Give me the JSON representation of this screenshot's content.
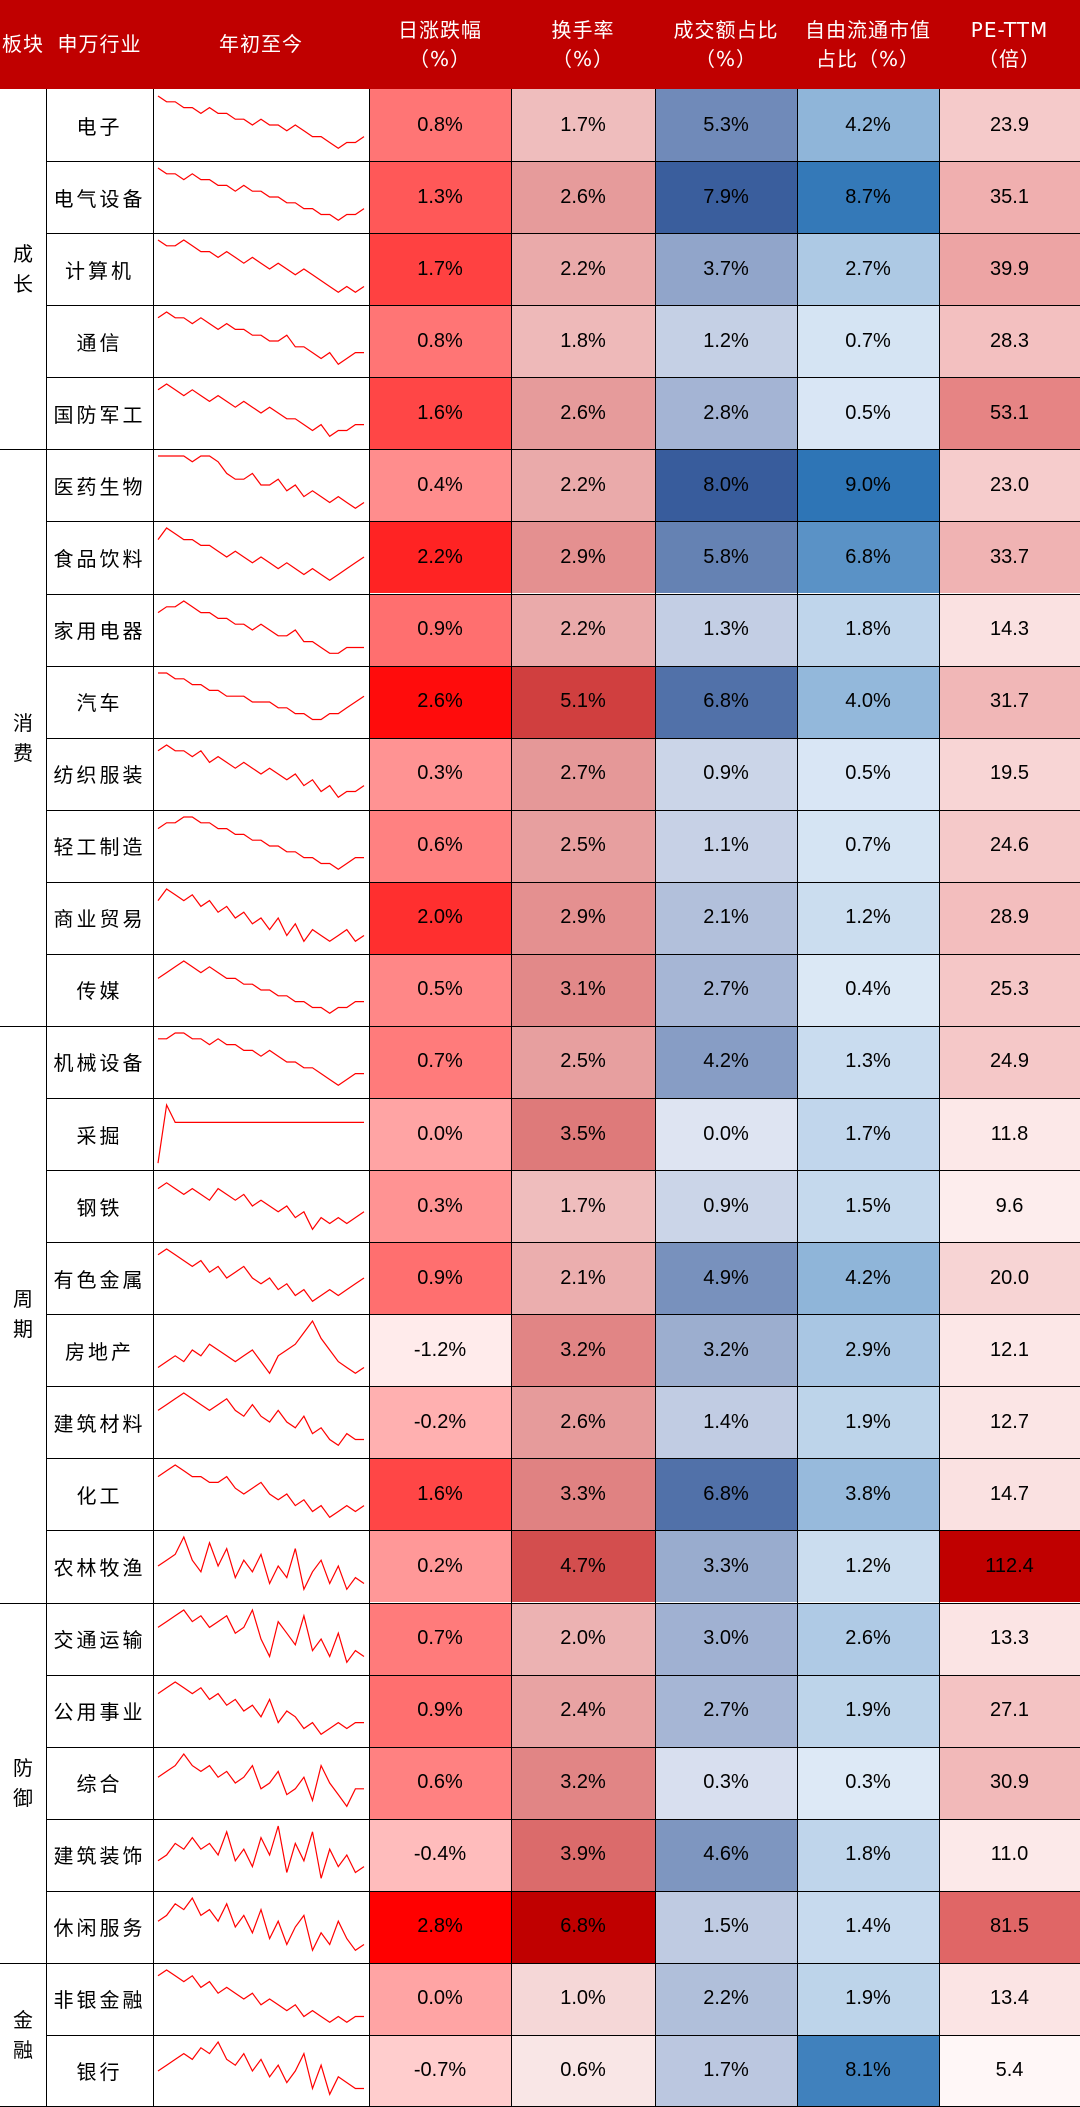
{
  "chart_data": {
    "type": "table",
    "columns": [
      "板块",
      "申万行业",
      "年初至今",
      "日涨跌幅\n（%）",
      "换手率\n（%）",
      "成交额占比\n（%）",
      "自由流通市值\n占比（%）",
      "PE-TTM\n（倍）"
    ],
    "sections": [
      {
        "name": "成长",
        "start": 0,
        "count": 5
      },
      {
        "name": "消费",
        "start": 5,
        "count": 8
      },
      {
        "name": "周期",
        "start": 13,
        "count": 8
      },
      {
        "name": "防御",
        "start": 21,
        "count": 5
      },
      {
        "name": "金融",
        "start": 26,
        "count": 2
      }
    ],
    "rows": [
      {
        "industry": "电子",
        "daily_change": "0.8%",
        "turnover": "1.7%",
        "volume_share": "5.3%",
        "mktcap_share": "4.2%",
        "pe_ttm": "23.9",
        "ytd_trend": [
          10,
          9,
          9,
          8,
          8,
          7,
          8,
          7,
          7,
          6,
          6,
          5,
          6,
          5,
          5,
          4,
          5,
          4,
          3,
          3,
          2,
          1,
          2,
          2,
          3
        ]
      },
      {
        "industry": "电气设备",
        "daily_change": "1.3%",
        "turnover": "2.6%",
        "volume_share": "7.9%",
        "mktcap_share": "8.7%",
        "pe_ttm": "35.1",
        "ytd_trend": [
          10,
          9,
          9,
          8,
          9,
          8,
          8,
          7,
          7,
          6,
          7,
          6,
          6,
          5,
          5,
          4,
          4,
          3,
          3,
          2,
          2,
          1,
          2,
          2,
          3
        ]
      },
      {
        "industry": "计算机",
        "daily_change": "1.7%",
        "turnover": "2.2%",
        "volume_share": "3.7%",
        "mktcap_share": "2.7%",
        "pe_ttm": "39.9",
        "ytd_trend": [
          10,
          9,
          9,
          10,
          9,
          8,
          8,
          7,
          8,
          7,
          6,
          7,
          6,
          5,
          6,
          5,
          4,
          5,
          4,
          3,
          2,
          1,
          2,
          1,
          2
        ]
      },
      {
        "industry": "通信",
        "daily_change": "0.8%",
        "turnover": "1.8%",
        "volume_share": "1.2%",
        "mktcap_share": "0.7%",
        "pe_ttm": "28.3",
        "ytd_trend": [
          9,
          10,
          9,
          9,
          8,
          9,
          8,
          7,
          8,
          7,
          7,
          6,
          6,
          5,
          5,
          6,
          4,
          4,
          3,
          2,
          3,
          1,
          2,
          3,
          3
        ]
      },
      {
        "industry": "国防军工",
        "daily_change": "1.6%",
        "turnover": "2.6%",
        "volume_share": "2.8%",
        "mktcap_share": "0.5%",
        "pe_ttm": "53.1",
        "ytd_trend": [
          9,
          10,
          9,
          8,
          9,
          8,
          7,
          8,
          7,
          6,
          7,
          6,
          5,
          6,
          5,
          4,
          4,
          3,
          2,
          3,
          1,
          2,
          2,
          3,
          3
        ]
      },
      {
        "industry": "医药生物",
        "daily_change": "0.4%",
        "turnover": "2.2%",
        "volume_share": "8.0%",
        "mktcap_share": "9.0%",
        "pe_ttm": "23.0",
        "ytd_trend": [
          10,
          10,
          10,
          10,
          9,
          10,
          10,
          9,
          7,
          6,
          6,
          7,
          5,
          5,
          6,
          4,
          5,
          3,
          4,
          3,
          2,
          3,
          2,
          1,
          2
        ]
      },
      {
        "industry": "食品饮料",
        "daily_change": "2.2%",
        "turnover": "2.9%",
        "volume_share": "5.8%",
        "mktcap_share": "6.8%",
        "pe_ttm": "33.7",
        "ytd_trend": [
          8,
          10,
          9,
          8,
          8,
          7,
          7,
          6,
          5,
          6,
          5,
          4,
          5,
          4,
          3,
          4,
          3,
          2,
          3,
          2,
          1,
          2,
          3,
          4,
          5
        ]
      },
      {
        "industry": "家用电器",
        "daily_change": "0.9%",
        "turnover": "2.2%",
        "volume_share": "1.3%",
        "mktcap_share": "1.8%",
        "pe_ttm": "14.3",
        "ytd_trend": [
          8,
          9,
          9,
          10,
          9,
          8,
          8,
          7,
          7,
          6,
          6,
          5,
          6,
          5,
          4,
          4,
          5,
          3,
          3,
          2,
          1,
          1,
          2,
          2,
          2
        ]
      },
      {
        "industry": "汽车",
        "daily_change": "2.6%",
        "turnover": "5.1%",
        "volume_share": "6.8%",
        "mktcap_share": "4.0%",
        "pe_ttm": "31.7",
        "ytd_trend": [
          10,
          10,
          9,
          9,
          8,
          8,
          7,
          7,
          6,
          6,
          6,
          5,
          5,
          5,
          4,
          4,
          3,
          3,
          2,
          2,
          3,
          3,
          4,
          5,
          6
        ]
      },
      {
        "industry": "纺织服装",
        "daily_change": "0.3%",
        "turnover": "2.7%",
        "volume_share": "0.9%",
        "mktcap_share": "0.5%",
        "pe_ttm": "19.5",
        "ytd_trend": [
          9,
          10,
          9,
          9,
          8,
          9,
          7,
          8,
          7,
          6,
          7,
          6,
          5,
          6,
          5,
          4,
          5,
          3,
          4,
          2,
          3,
          1,
          2,
          2,
          3
        ]
      },
      {
        "industry": "轻工制造",
        "daily_change": "0.6%",
        "turnover": "2.5%",
        "volume_share": "1.1%",
        "mktcap_share": "0.7%",
        "pe_ttm": "24.6",
        "ytd_trend": [
          8,
          9,
          9,
          10,
          10,
          9,
          9,
          8,
          8,
          7,
          7,
          6,
          6,
          5,
          5,
          4,
          4,
          3,
          3,
          2,
          2,
          1,
          2,
          3,
          3
        ]
      },
      {
        "industry": "商业贸易",
        "daily_change": "2.0%",
        "turnover": "2.9%",
        "volume_share": "2.1%",
        "mktcap_share": "1.2%",
        "pe_ttm": "28.9",
        "ytd_trend": [
          8,
          10,
          9,
          8,
          9,
          7,
          8,
          6,
          7,
          5,
          6,
          4,
          5,
          3,
          5,
          2,
          4,
          1,
          3,
          2,
          1,
          2,
          3,
          1,
          2
        ]
      },
      {
        "industry": "传媒",
        "daily_change": "0.5%",
        "turnover": "3.1%",
        "volume_share": "2.7%",
        "mktcap_share": "0.4%",
        "pe_ttm": "25.3",
        "ytd_trend": [
          7,
          8,
          9,
          10,
          9,
          8,
          9,
          8,
          7,
          7,
          6,
          6,
          5,
          5,
          4,
          4,
          3,
          3,
          2,
          2,
          1,
          2,
          2,
          3,
          3
        ]
      },
      {
        "industry": "机械设备",
        "daily_change": "0.7%",
        "turnover": "2.5%",
        "volume_share": "4.2%",
        "mktcap_share": "1.3%",
        "pe_ttm": "24.9",
        "ytd_trend": [
          9,
          9,
          10,
          10,
          9,
          9,
          8,
          9,
          8,
          8,
          7,
          7,
          6,
          7,
          6,
          5,
          5,
          4,
          4,
          3,
          2,
          1,
          2,
          3,
          3
        ]
      },
      {
        "industry": "采掘",
        "daily_change": "0.0%",
        "turnover": "3.5%",
        "volume_share": "0.0%",
        "mktcap_share": "1.7%",
        "pe_ttm": "11.8",
        "ytd_trend": [
          0,
          10,
          7,
          7,
          7,
          7,
          7,
          7,
          7,
          7,
          7,
          7,
          7,
          7,
          7,
          7,
          7,
          7,
          7,
          7,
          7,
          7,
          7,
          7,
          7
        ]
      },
      {
        "industry": "钢铁",
        "daily_change": "0.3%",
        "turnover": "1.7%",
        "volume_share": "0.9%",
        "mktcap_share": "1.5%",
        "pe_ttm": "9.6",
        "ytd_trend": [
          8,
          9,
          8,
          7,
          8,
          7,
          6,
          8,
          7,
          6,
          7,
          5,
          6,
          5,
          4,
          5,
          3,
          4,
          1,
          3,
          2,
          3,
          2,
          3,
          4
        ]
      },
      {
        "industry": "有色金属",
        "daily_change": "0.9%",
        "turnover": "2.1%",
        "volume_share": "4.9%",
        "mktcap_share": "4.2%",
        "pe_ttm": "20.0",
        "ytd_trend": [
          9,
          10,
          9,
          8,
          7,
          8,
          6,
          7,
          5,
          6,
          7,
          5,
          4,
          5,
          3,
          4,
          2,
          3,
          1,
          2,
          3,
          2,
          3,
          4,
          5
        ]
      },
      {
        "industry": "房地产",
        "daily_change": "-1.2%",
        "turnover": "3.2%",
        "volume_share": "3.2%",
        "mktcap_share": "2.9%",
        "pe_ttm": "12.1",
        "ytd_trend": [
          2,
          3,
          4,
          3,
          5,
          4,
          6,
          5,
          4,
          3,
          4,
          5,
          3,
          1,
          4,
          5,
          6,
          8,
          10,
          7,
          5,
          3,
          2,
          1,
          2
        ]
      },
      {
        "industry": "建筑材料",
        "daily_change": "-0.2%",
        "turnover": "2.6%",
        "volume_share": "1.4%",
        "mktcap_share": "1.9%",
        "pe_ttm": "12.7",
        "ytd_trend": [
          7,
          8,
          9,
          10,
          9,
          8,
          7,
          8,
          9,
          7,
          6,
          8,
          6,
          5,
          7,
          5,
          4,
          6,
          3,
          4,
          2,
          1,
          3,
          2,
          2
        ]
      },
      {
        "industry": "化工",
        "daily_change": "1.6%",
        "turnover": "3.3%",
        "volume_share": "6.8%",
        "mktcap_share": "3.8%",
        "pe_ttm": "14.7",
        "ytd_trend": [
          8,
          9,
          10,
          9,
          8,
          8,
          7,
          7,
          8,
          6,
          5,
          6,
          7,
          5,
          4,
          5,
          3,
          4,
          2,
          3,
          1,
          2,
          3,
          2,
          3
        ]
      },
      {
        "industry": "农林牧渔",
        "daily_change": "0.2%",
        "turnover": "4.7%",
        "volume_share": "3.3%",
        "mktcap_share": "1.2%",
        "pe_ttm": "112.4",
        "ytd_trend": [
          5,
          6,
          7,
          10,
          6,
          4,
          9,
          5,
          8,
          3,
          6,
          4,
          7,
          2,
          5,
          3,
          8,
          1,
          4,
          6,
          2,
          5,
          1,
          3,
          2
        ]
      },
      {
        "industry": "交通运输",
        "daily_change": "0.7%",
        "turnover": "2.0%",
        "volume_share": "3.0%",
        "mktcap_share": "2.6%",
        "pe_ttm": "13.3",
        "ytd_trend": [
          7,
          8,
          9,
          10,
          8,
          9,
          7,
          8,
          9,
          6,
          7,
          10,
          5,
          2,
          8,
          6,
          4,
          9,
          3,
          5,
          2,
          6,
          1,
          3,
          2
        ]
      },
      {
        "industry": "公用事业",
        "daily_change": "0.9%",
        "turnover": "2.4%",
        "volume_share": "2.7%",
        "mktcap_share": "1.9%",
        "pe_ttm": "27.1",
        "ytd_trend": [
          8,
          9,
          10,
          9,
          8,
          9,
          7,
          8,
          6,
          7,
          5,
          6,
          4,
          7,
          3,
          5,
          4,
          2,
          3,
          1,
          2,
          3,
          2,
          3,
          3
        ]
      },
      {
        "industry": "综合",
        "daily_change": "0.6%",
        "turnover": "3.2%",
        "volume_share": "0.3%",
        "mktcap_share": "0.3%",
        "pe_ttm": "30.9",
        "ytd_trend": [
          6,
          7,
          8,
          10,
          8,
          7,
          8,
          6,
          7,
          5,
          6,
          8,
          4,
          5,
          7,
          3,
          4,
          6,
          2,
          8,
          5,
          3,
          1,
          4,
          4
        ]
      },
      {
        "industry": "建筑装饰",
        "daily_change": "-0.4%",
        "turnover": "3.9%",
        "volume_share": "4.6%",
        "mktcap_share": "1.8%",
        "pe_ttm": "11.0",
        "ytd_trend": [
          4,
          5,
          7,
          6,
          8,
          6,
          7,
          5,
          9,
          4,
          6,
          3,
          8,
          5,
          10,
          2,
          7,
          4,
          9,
          1,
          6,
          3,
          5,
          2,
          3
        ]
      },
      {
        "industry": "休闲服务",
        "daily_change": "2.8%",
        "turnover": "6.8%",
        "volume_share": "1.5%",
        "mktcap_share": "1.4%",
        "pe_ttm": "81.5",
        "ytd_trend": [
          6,
          7,
          9,
          8,
          10,
          7,
          8,
          6,
          9,
          5,
          7,
          4,
          8,
          3,
          6,
          2,
          5,
          7,
          1,
          4,
          2,
          6,
          3,
          1,
          2
        ]
      },
      {
        "industry": "非银金融",
        "daily_change": "0.0%",
        "turnover": "1.0%",
        "volume_share": "2.2%",
        "mktcap_share": "1.9%",
        "pe_ttm": "13.4",
        "ytd_trend": [
          9,
          10,
          9,
          8,
          9,
          7,
          8,
          6,
          7,
          6,
          5,
          6,
          4,
          5,
          4,
          3,
          4,
          2,
          3,
          2,
          1,
          2,
          1,
          2,
          2
        ]
      },
      {
        "industry": "银行",
        "daily_change": "-0.7%",
        "turnover": "0.6%",
        "volume_share": "1.7%",
        "mktcap_share": "8.1%",
        "pe_ttm": "5.4",
        "ytd_trend": [
          5,
          6,
          7,
          8,
          7,
          9,
          8,
          10,
          7,
          6,
          8,
          5,
          7,
          4,
          6,
          3,
          5,
          8,
          2,
          6,
          1,
          4,
          3,
          2,
          2
        ]
      }
    ],
    "colors": {
      "header_bg": "#c00000",
      "header_text": "#ffffff",
      "sparkline": "#ff0000",
      "red_scale": [
        "#ffffff",
        "#ff0000"
      ],
      "red_scale_deep": [
        "#ffffff",
        "#c00000"
      ],
      "blue_scale": [
        "#ffffff",
        "#2e75b6"
      ],
      "blue_scale_deep": [
        "#ffffff",
        "#2f5597"
      ]
    }
  }
}
